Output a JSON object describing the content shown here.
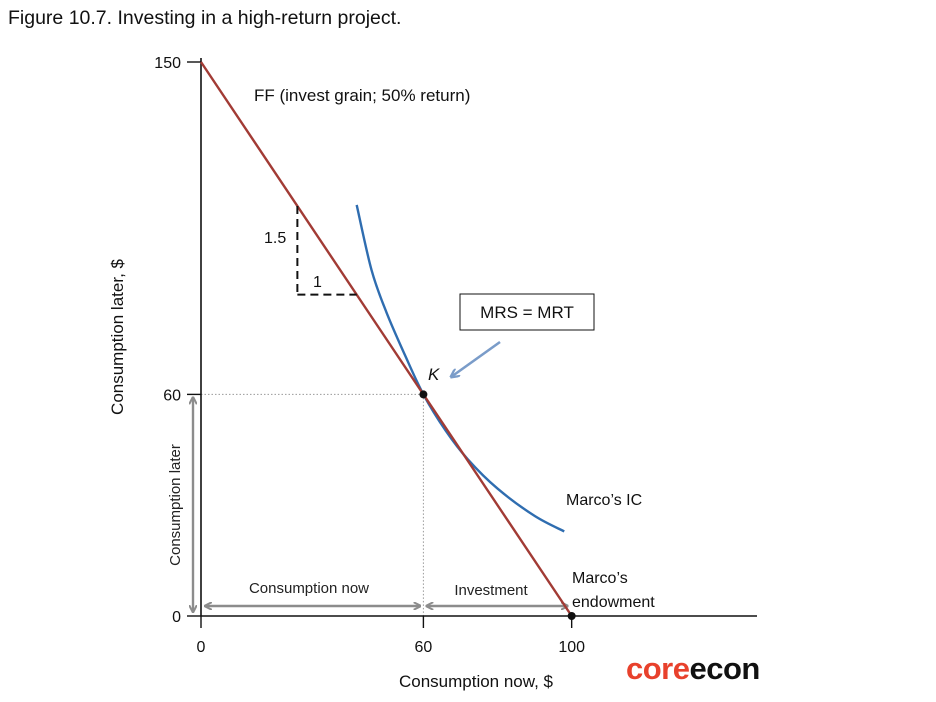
{
  "figure_title": "Figure 10.7. Investing in a high-return project.",
  "colors": {
    "feasible_frontier": "#A23B35",
    "indifference_curve": "#2F6DB0",
    "arrow_blue": "#7A9CC9",
    "gray_arrow": "#8C8C8C",
    "axis": "#111111",
    "brand_core": "#E8412C",
    "brand_econ": "#111111"
  },
  "brand": {
    "part1": "core",
    "part2": "econ"
  },
  "chart_data": {
    "type": "line",
    "xlabel": "Consumption now, $",
    "ylabel": "Consumption later, $",
    "x_ticks": [
      "0",
      "60",
      "100"
    ],
    "y_ticks": [
      "0",
      "60",
      "150"
    ],
    "xlim": [
      0,
      150
    ],
    "ylim": [
      0,
      150
    ],
    "grid": false,
    "series": [
      {
        "name": "FF (invest grain; 50% return)",
        "kind": "feasible_frontier",
        "x": [
          0,
          100
        ],
        "y": [
          150,
          0
        ]
      },
      {
        "name": "Marco’s IC",
        "kind": "indifference_curve",
        "x": [
          42,
          46,
          50,
          55,
          60,
          66,
          72,
          80,
          90,
          98
        ],
        "y": [
          111.3,
          93.7,
          82.3,
          70.7,
          60,
          50.2,
          42.4,
          34.5,
          27.1,
          22.9
        ]
      }
    ],
    "slope_triangle": {
      "rise": "1.5",
      "run": "1"
    },
    "points": [
      {
        "label": "K",
        "x": 60,
        "y": 60
      },
      {
        "label": "Marco’s endowment",
        "x": 100,
        "y": 0
      }
    ],
    "annotations": {
      "mrs_box": "MRS = MRT",
      "consumption_now": "Consumption now",
      "investment": "Investment",
      "consumption_later": "Consumption later",
      "endowment_line1": "Marco’s",
      "endowment_line2": "endowment"
    }
  }
}
